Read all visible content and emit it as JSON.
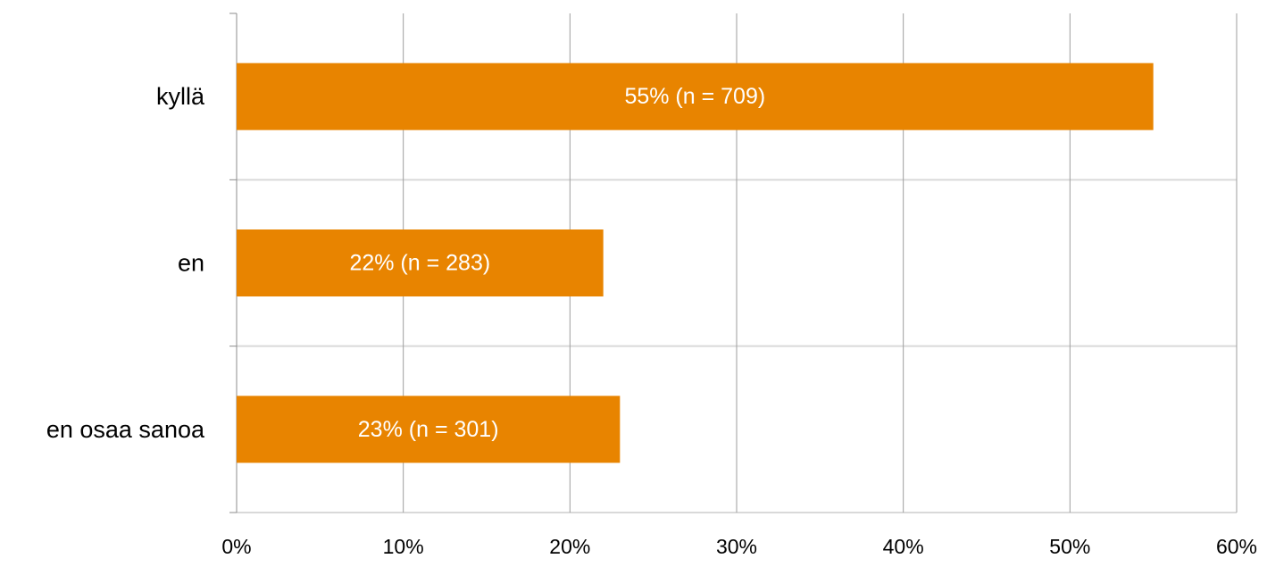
{
  "chart_data": {
    "type": "bar",
    "orientation": "horizontal",
    "categories": [
      "kyllä",
      "en",
      "en osaa sanoa"
    ],
    "values": [
      55,
      22,
      23
    ],
    "data_labels": [
      "55% (n = 709)",
      "22% (n = 283)",
      "23% (n = 301)"
    ],
    "x_ticks": [
      "0%",
      "10%",
      "20%",
      "30%",
      "40%",
      "50%",
      "60%"
    ],
    "xlim": [
      0,
      60
    ],
    "unit": "%",
    "grid": true,
    "legend": "none",
    "bar_color": "#E88400",
    "grid_color": "#9E9E9E",
    "separator_color": "#D9D9D9",
    "axis_color": "#8C8C8C"
  }
}
